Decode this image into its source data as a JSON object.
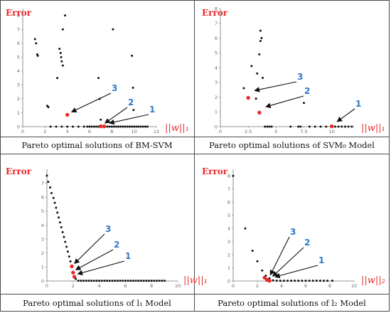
{
  "captions": [
    "Pareto optimal solutions of BM-SVM",
    "Pareto optimal solutions of SVM₀ Model",
    "Pareto optimal solutions of  l₁  Model",
    "Pareto optimal solutions of  l₂  Model"
  ],
  "colors": {
    "label_red": "#e8282a",
    "label_blue": "#2e79c7",
    "point_black": "#111111",
    "point_red": "#e8282a"
  },
  "chart_data": [
    {
      "type": "scatter",
      "ylabel": "Error",
      "xlabel": "||w||₁",
      "xlim": [
        0,
        12
      ],
      "ylim": [
        0,
        8.5
      ],
      "xticks": [
        0,
        2,
        4,
        6,
        8,
        10,
        12
      ],
      "yticks": [
        0,
        1,
        2,
        3,
        4,
        5,
        6,
        7,
        8
      ],
      "black_points": [
        [
          1.1,
          6.3
        ],
        [
          1.2,
          6.0
        ],
        [
          1.3,
          5.2
        ],
        [
          1.35,
          5.1
        ],
        [
          2.2,
          1.5
        ],
        [
          2.3,
          1.4
        ],
        [
          3.1,
          3.5
        ],
        [
          3.3,
          5.6
        ],
        [
          3.4,
          5.3
        ],
        [
          3.45,
          5.0
        ],
        [
          3.5,
          4.7
        ],
        [
          3.6,
          4.4
        ],
        [
          3.6,
          7.0
        ],
        [
          3.8,
          8.0
        ],
        [
          6.8,
          3.5
        ],
        [
          6.9,
          2.0
        ],
        [
          7.0,
          0.5
        ],
        [
          8.1,
          7.0
        ],
        [
          9.8,
          5.1
        ],
        [
          9.9,
          2.8
        ],
        [
          9.95,
          1.2
        ],
        [
          2.5,
          0
        ],
        [
          3.0,
          0
        ],
        [
          3.5,
          0
        ],
        [
          4.0,
          0
        ],
        [
          4.5,
          0
        ],
        [
          5.0,
          0
        ],
        [
          5.5,
          0
        ],
        [
          5.8,
          0
        ],
        [
          6.0,
          0
        ],
        [
          6.2,
          0
        ],
        [
          6.4,
          0
        ],
        [
          6.6,
          0
        ],
        [
          6.8,
          0
        ],
        [
          7.4,
          0
        ],
        [
          7.6,
          0
        ],
        [
          7.8,
          0
        ],
        [
          8.0,
          0
        ],
        [
          8.2,
          0
        ],
        [
          8.4,
          0
        ],
        [
          8.6,
          0
        ],
        [
          8.8,
          0
        ],
        [
          9.0,
          0
        ],
        [
          9.2,
          0
        ],
        [
          9.4,
          0
        ],
        [
          9.6,
          0
        ],
        [
          9.8,
          0
        ],
        [
          10.0,
          0
        ],
        [
          10.2,
          0
        ],
        [
          10.4,
          0
        ],
        [
          10.6,
          0
        ],
        [
          10.8,
          0
        ],
        [
          11.0,
          0
        ],
        [
          11.2,
          0
        ]
      ],
      "red_points": [
        [
          4.0,
          0.85
        ],
        [
          7.0,
          0.02
        ],
        [
          7.3,
          0.02
        ]
      ],
      "annotations": [
        {
          "label": "1",
          "target": [
            7.6,
            0.1
          ]
        },
        {
          "label": "2",
          "target": [
            7.2,
            0.1
          ]
        },
        {
          "label": "3",
          "target": [
            4.2,
            0.9
          ]
        }
      ]
    },
    {
      "type": "scatter",
      "ylabel": "Error",
      "xlabel": "||w||₁",
      "xlim": [
        0,
        12
      ],
      "ylim": [
        0,
        8
      ],
      "xticks": [
        0,
        2.5,
        5,
        7.5,
        10
      ],
      "yticks": [
        0,
        1,
        2,
        3,
        4,
        5,
        6,
        7,
        8
      ],
      "black_points": [
        [
          2.1,
          2.6
        ],
        [
          2.8,
          4.1
        ],
        [
          3.3,
          3.6
        ],
        [
          3.5,
          4.9
        ],
        [
          3.6,
          5.8
        ],
        [
          3.7,
          6.0
        ],
        [
          3.6,
          6.5
        ],
        [
          3.8,
          3.3
        ],
        [
          3.2,
          1.9
        ],
        [
          7.5,
          1.6
        ],
        [
          4.0,
          0
        ],
        [
          4.2,
          0
        ],
        [
          4.4,
          0
        ],
        [
          4.6,
          0
        ],
        [
          6.3,
          0
        ],
        [
          7.0,
          0
        ],
        [
          7.2,
          0
        ],
        [
          8.0,
          0
        ],
        [
          8.5,
          0
        ],
        [
          9.0,
          0
        ],
        [
          9.5,
          0
        ],
        [
          10.3,
          0
        ],
        [
          10.6,
          0
        ],
        [
          10.9,
          0
        ],
        [
          11.2,
          0
        ],
        [
          11.5,
          0
        ],
        [
          11.8,
          0
        ]
      ],
      "red_points": [
        [
          2.5,
          1.95
        ],
        [
          3.5,
          0.95
        ],
        [
          10.0,
          0.02
        ]
      ],
      "annotations": [
        {
          "label": "1",
          "target": [
            10.3,
            0.2
          ]
        },
        {
          "label": "2",
          "target": [
            3.9,
            1.2
          ]
        },
        {
          "label": "3",
          "target": [
            2.9,
            2.3
          ]
        }
      ]
    },
    {
      "type": "scatter",
      "ylabel": "Error",
      "xlabel": "||w||₁",
      "xlim": [
        0,
        10
      ],
      "ylim": [
        0,
        8
      ],
      "xticks": [
        0,
        2,
        4,
        6,
        8,
        10
      ],
      "yticks": [
        0,
        1,
        2,
        3,
        4,
        5,
        6,
        7
      ],
      "black_points": [
        [
          0,
          7.55
        ],
        [
          0.1,
          7.1
        ],
        [
          0.25,
          6.7
        ],
        [
          0.35,
          6.3
        ],
        [
          0.5,
          5.95
        ],
        [
          0.6,
          5.6
        ],
        [
          0.7,
          5.25
        ],
        [
          0.8,
          4.9
        ],
        [
          0.9,
          4.55
        ],
        [
          1.0,
          4.2
        ],
        [
          1.1,
          3.85
        ],
        [
          1.2,
          3.5
        ],
        [
          1.3,
          3.15
        ],
        [
          1.4,
          2.8
        ],
        [
          1.5,
          2.45
        ],
        [
          1.6,
          2.1
        ],
        [
          1.7,
          1.75
        ],
        [
          1.8,
          1.4
        ],
        [
          2.2,
          0.15
        ],
        [
          2.4,
          0.02
        ],
        [
          2.6,
          0.02
        ],
        [
          2.8,
          0.02
        ],
        [
          3.0,
          0.02
        ],
        [
          3.2,
          0.02
        ],
        [
          3.4,
          0.02
        ],
        [
          3.6,
          0.02
        ],
        [
          3.8,
          0.02
        ],
        [
          4.0,
          0.02
        ],
        [
          4.2,
          0.02
        ],
        [
          4.4,
          0.02
        ],
        [
          4.6,
          0.02
        ],
        [
          4.8,
          0.02
        ],
        [
          5.0,
          0.02
        ],
        [
          5.2,
          0.02
        ],
        [
          5.4,
          0.02
        ],
        [
          5.6,
          0.02
        ],
        [
          5.8,
          0.02
        ],
        [
          6.0,
          0.02
        ],
        [
          6.2,
          0.02
        ],
        [
          6.4,
          0.02
        ],
        [
          6.6,
          0.02
        ],
        [
          6.8,
          0.02
        ],
        [
          7.0,
          0.02
        ],
        [
          7.2,
          0.02
        ],
        [
          7.4,
          0.02
        ],
        [
          7.6,
          0.02
        ],
        [
          7.8,
          0.02
        ],
        [
          8.0,
          0.02
        ],
        [
          8.2,
          0.02
        ],
        [
          8.4,
          0.02
        ],
        [
          8.6,
          0.02
        ],
        [
          8.8,
          0.02
        ],
        [
          9.0,
          0.02
        ]
      ],
      "red_points": [
        [
          1.9,
          1.05
        ],
        [
          2.0,
          0.6
        ],
        [
          2.1,
          0.3
        ]
      ],
      "annotations": [
        {
          "label": "1",
          "target": [
            2.2,
            0.35
          ]
        },
        {
          "label": "2",
          "target": [
            2.05,
            0.65
          ]
        },
        {
          "label": "3",
          "target": [
            1.95,
            1.1
          ]
        }
      ]
    },
    {
      "type": "scatter",
      "ylabel": "Error",
      "xlabel": "||w||₂",
      "xlim": [
        0,
        10
      ],
      "ylim": [
        0,
        8.5
      ],
      "xticks": [
        0,
        2,
        4,
        6,
        8,
        10
      ],
      "yticks": [
        0,
        1,
        2,
        3,
        4,
        5,
        6,
        7,
        8
      ],
      "black_points": [
        [
          0,
          8.0
        ],
        [
          1.0,
          4.0
        ],
        [
          1.6,
          2.3
        ],
        [
          2.0,
          1.5
        ],
        [
          2.4,
          0.8
        ],
        [
          2.7,
          0.4
        ],
        [
          3.0,
          0.2
        ],
        [
          3.3,
          0.05
        ],
        [
          3.6,
          0.02
        ],
        [
          3.9,
          0.02
        ],
        [
          4.2,
          0.02
        ],
        [
          4.5,
          0.02
        ],
        [
          4.8,
          0.02
        ],
        [
          5.1,
          0.02
        ],
        [
          5.4,
          0.02
        ],
        [
          5.7,
          0.02
        ],
        [
          6.0,
          0.02
        ],
        [
          6.3,
          0.02
        ],
        [
          6.6,
          0.02
        ],
        [
          6.9,
          0.02
        ],
        [
          7.2,
          0.02
        ],
        [
          7.5,
          0.02
        ],
        [
          7.8,
          0.02
        ],
        [
          8.2,
          0.02
        ]
      ],
      "red_points": [
        [
          2.6,
          0.25
        ],
        [
          2.8,
          0.08
        ],
        [
          3.0,
          0.02
        ]
      ],
      "annotations": [
        {
          "label": "1",
          "target": [
            3.3,
            0.15
          ]
        },
        {
          "label": "2",
          "target": [
            3.1,
            0.2
          ]
        },
        {
          "label": "3",
          "target": [
            2.9,
            0.3
          ]
        }
      ]
    }
  ]
}
